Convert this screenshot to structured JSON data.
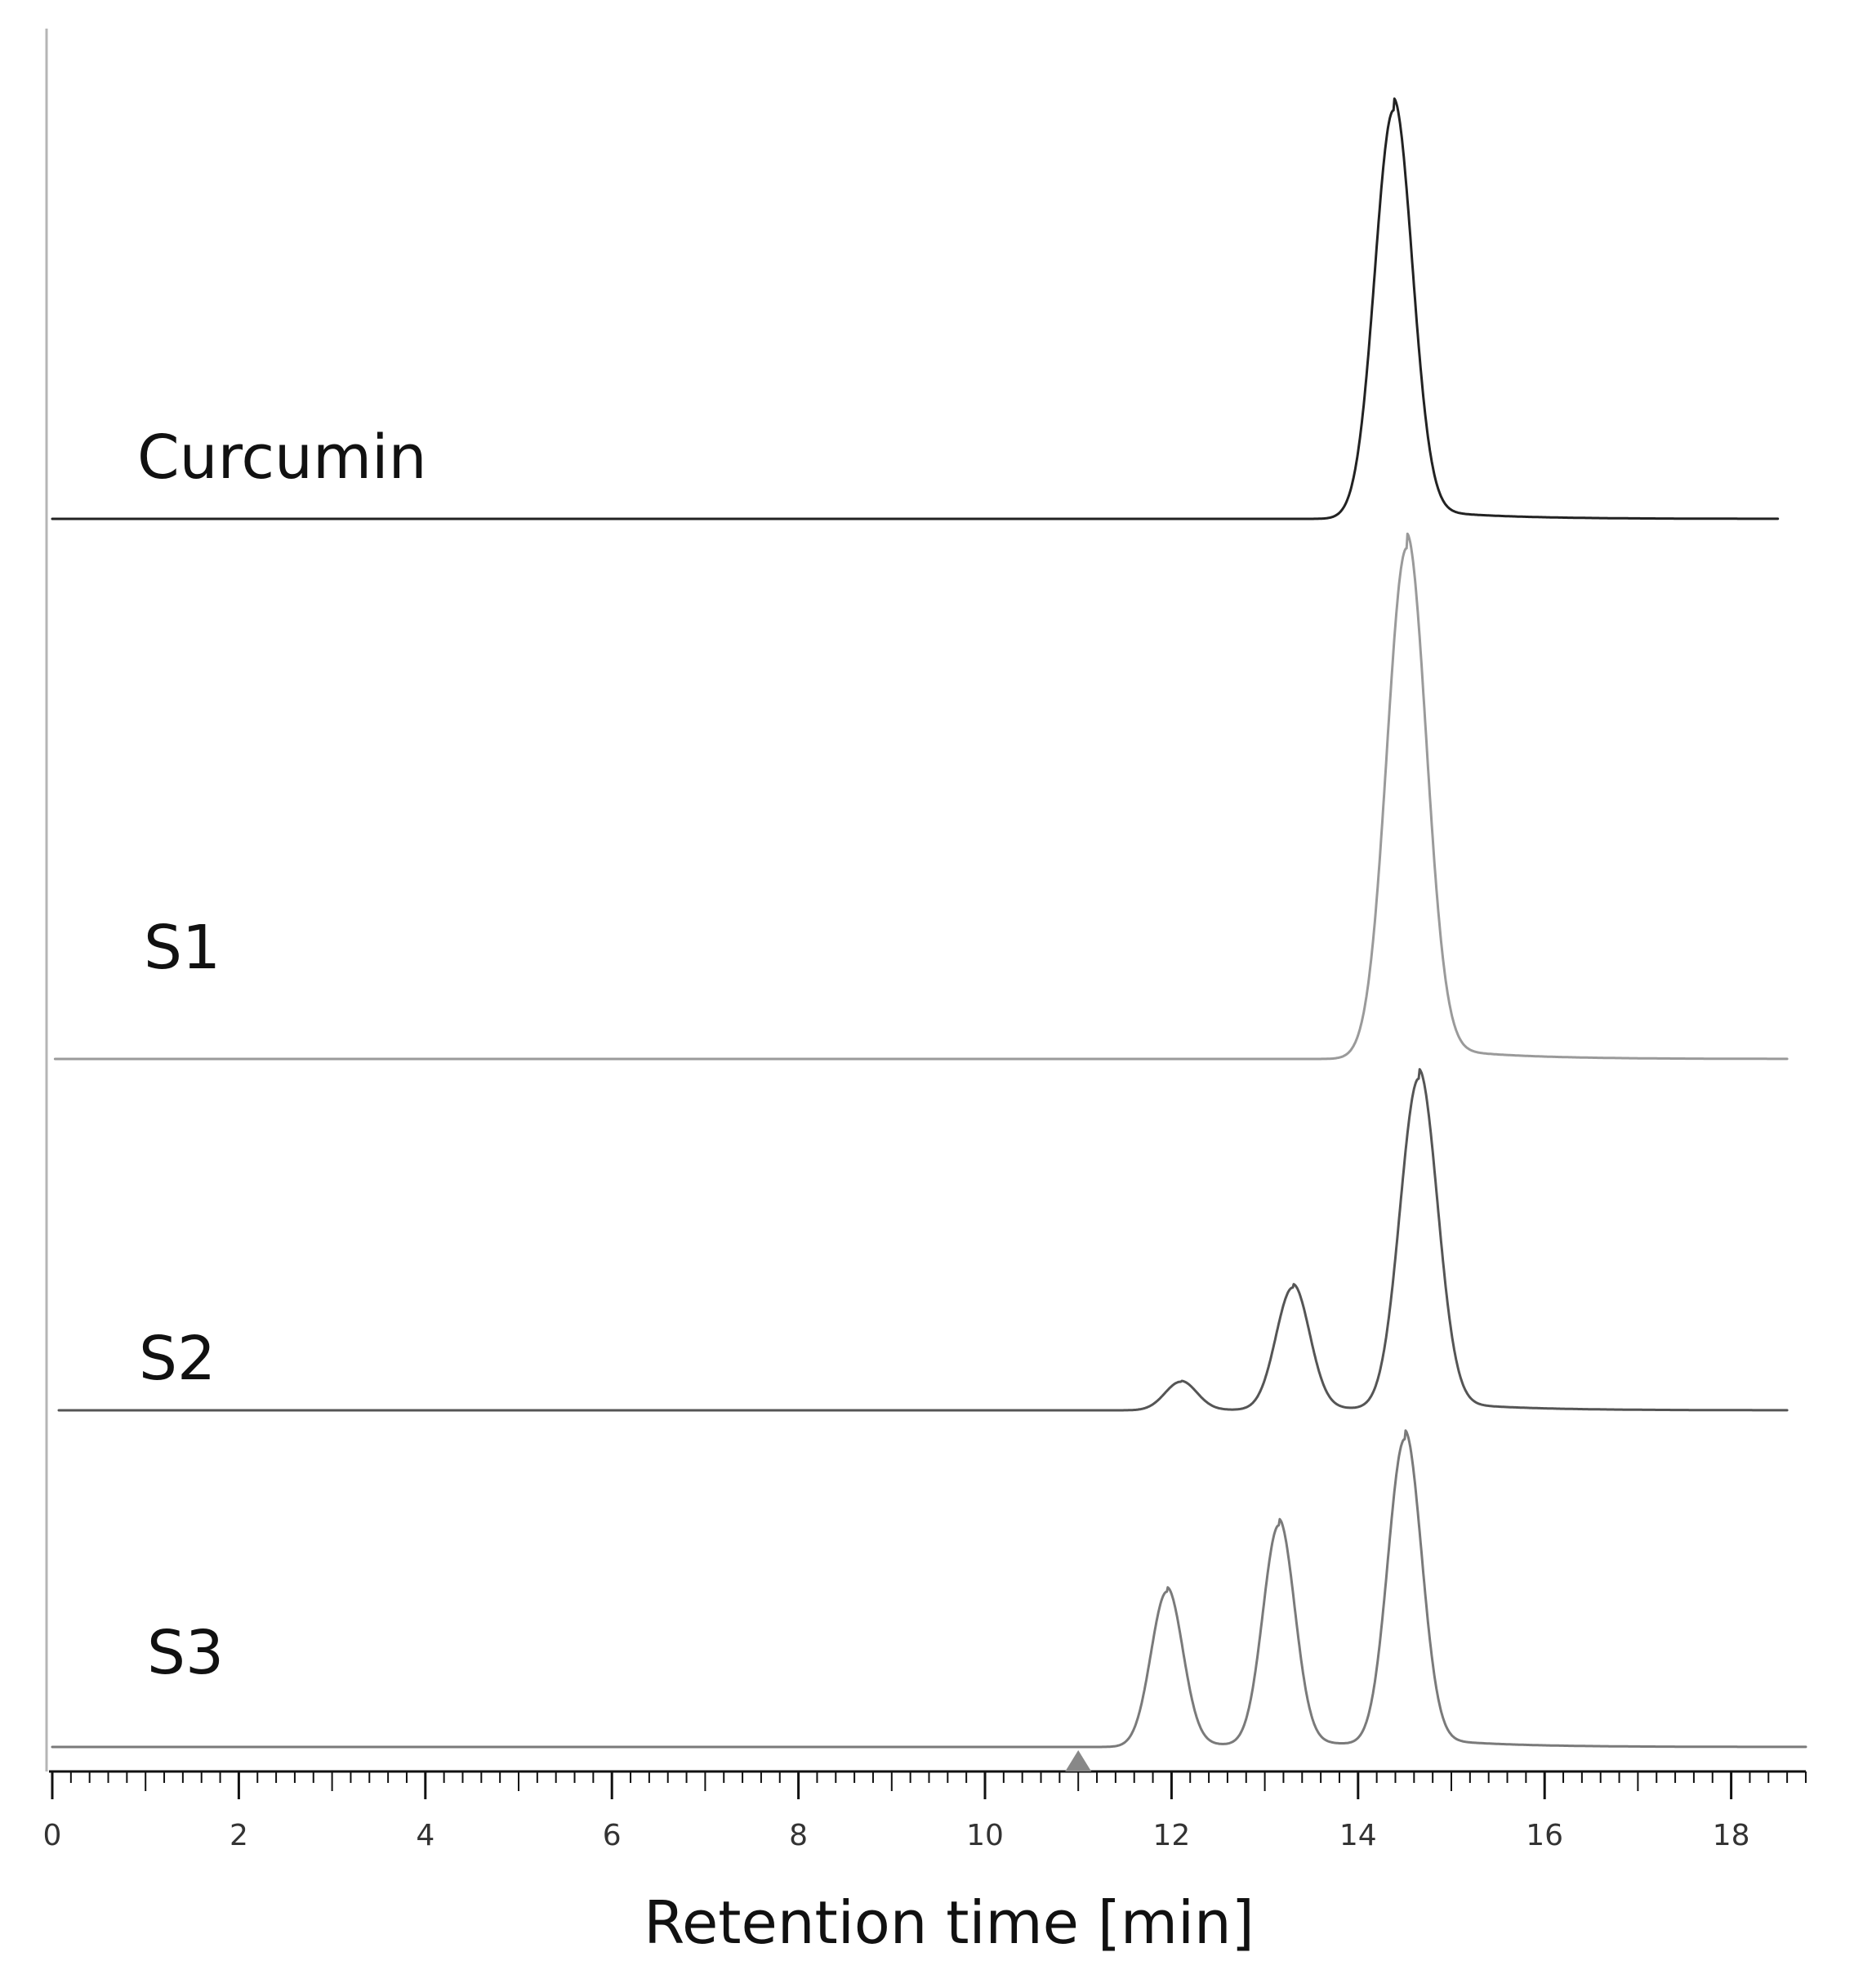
{
  "chart_data": {
    "type": "line",
    "title": "",
    "xlabel": "Retention time [min]",
    "ylabel": "",
    "xlim": [
      0,
      18.8
    ],
    "xticks": [
      0,
      2,
      4,
      6,
      8,
      10,
      12,
      14,
      16,
      18
    ],
    "x_minor_step": 0.2,
    "injection_marker_x": 11,
    "grid": false,
    "series": [
      {
        "name": "Curcumin",
        "color": "#222222",
        "x_end": 18.5,
        "baseline": 0,
        "peaks": [
          {
            "rt": 14.38,
            "height": 1.0,
            "width": 0.2
          }
        ]
      },
      {
        "name": "S1",
        "color": "#9a9a9a",
        "x_end": 18.6,
        "baseline": 0,
        "peaks": [
          {
            "rt": 14.52,
            "height": 1.25,
            "width": 0.21
          }
        ]
      },
      {
        "name": "S2",
        "color": "#555555",
        "x_end": 18.6,
        "baseline": 0,
        "peaks": [
          {
            "rt": 12.1,
            "height": 0.07,
            "width": 0.17
          },
          {
            "rt": 13.3,
            "height": 0.3,
            "width": 0.18
          },
          {
            "rt": 14.65,
            "height": 0.81,
            "width": 0.2
          }
        ]
      },
      {
        "name": "S3",
        "color": "#7a7a7a",
        "x_end": 18.8,
        "baseline": 0,
        "peaks": [
          {
            "rt": 11.95,
            "height": 0.38,
            "width": 0.17
          },
          {
            "rt": 13.15,
            "height": 0.54,
            "width": 0.17
          },
          {
            "rt": 14.5,
            "height": 0.75,
            "width": 0.18
          }
        ]
      }
    ]
  }
}
